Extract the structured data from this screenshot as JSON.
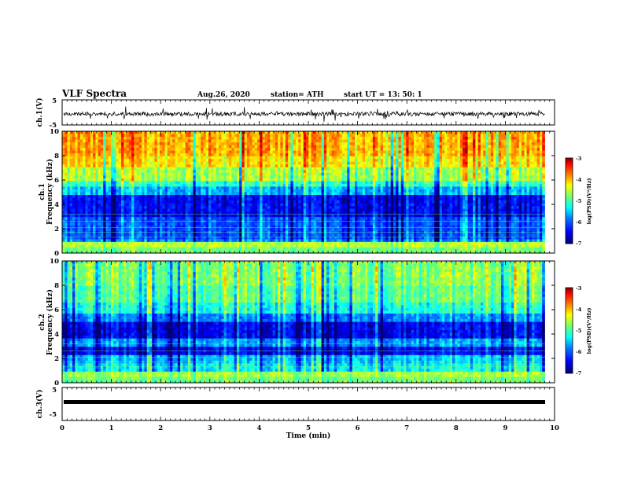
{
  "header": {
    "title": "VLF Spectra",
    "date": "Aug.26, 2020",
    "station": "station= ATH",
    "start": "start  UT =   13: 50: 1"
  },
  "chart_data": [
    {
      "type": "line",
      "name": "ch1-waveform",
      "ylabel": "ch.1(V)",
      "ylim": [
        -5,
        5
      ],
      "y_ticks": [
        "5",
        "-5"
      ],
      "xlim": [
        0,
        10
      ],
      "trace_level_approx": 0
    },
    {
      "type": "heatmap",
      "name": "ch1-spectrogram",
      "ylabel": "ch.1 Frequency (kHz)",
      "ylabel_line1": "ch.1",
      "ylabel_line2": "Frequency (kHz)",
      "ylim": [
        0,
        10
      ],
      "y_ticks": [
        "0",
        "2",
        "4",
        "6",
        "8",
        "10"
      ],
      "xlim": [
        0,
        10
      ],
      "colorbar": {
        "label": "log(PSD)(V²/Hz)",
        "range": [
          -7,
          -3
        ],
        "ticks": [
          "-3",
          "-4",
          "-5",
          "-6",
          "-7"
        ]
      }
    },
    {
      "type": "heatmap",
      "name": "ch2-spectrogram",
      "ylabel": "ch.2 Frequency (kHz)",
      "ylabel_line1": "ch.2",
      "ylabel_line2": "Frequency (kHz)",
      "ylim": [
        0,
        10
      ],
      "y_ticks": [
        "0",
        "2",
        "4",
        "6",
        "8",
        "10"
      ],
      "xlim": [
        0,
        10
      ],
      "colorbar": {
        "label": "log(PSD)(V²/Hz)",
        "range": [
          -7,
          -3
        ],
        "ticks": [
          "-3",
          "-4",
          "-5",
          "-6",
          "-7"
        ]
      }
    },
    {
      "type": "line",
      "name": "ch3-waveform",
      "ylabel": "ch.3(V)",
      "ylim": [
        -5,
        5
      ],
      "y_ticks": [
        "5",
        "-5"
      ],
      "xlim": [
        0,
        10
      ],
      "trace_level_approx": 0
    }
  ],
  "x_axis": {
    "label": "Time  (min)",
    "ticks": [
      "0",
      "1",
      "2",
      "3",
      "4",
      "5",
      "6",
      "7",
      "8",
      "9",
      "10"
    ]
  },
  "colors": {
    "ink": "#000000",
    "spectrum_scale": [
      "#00007f",
      "#0000ff",
      "#0080ff",
      "#00ffff",
      "#80ff80",
      "#ffff00",
      "#ff8000",
      "#ff0000",
      "#800000"
    ]
  }
}
